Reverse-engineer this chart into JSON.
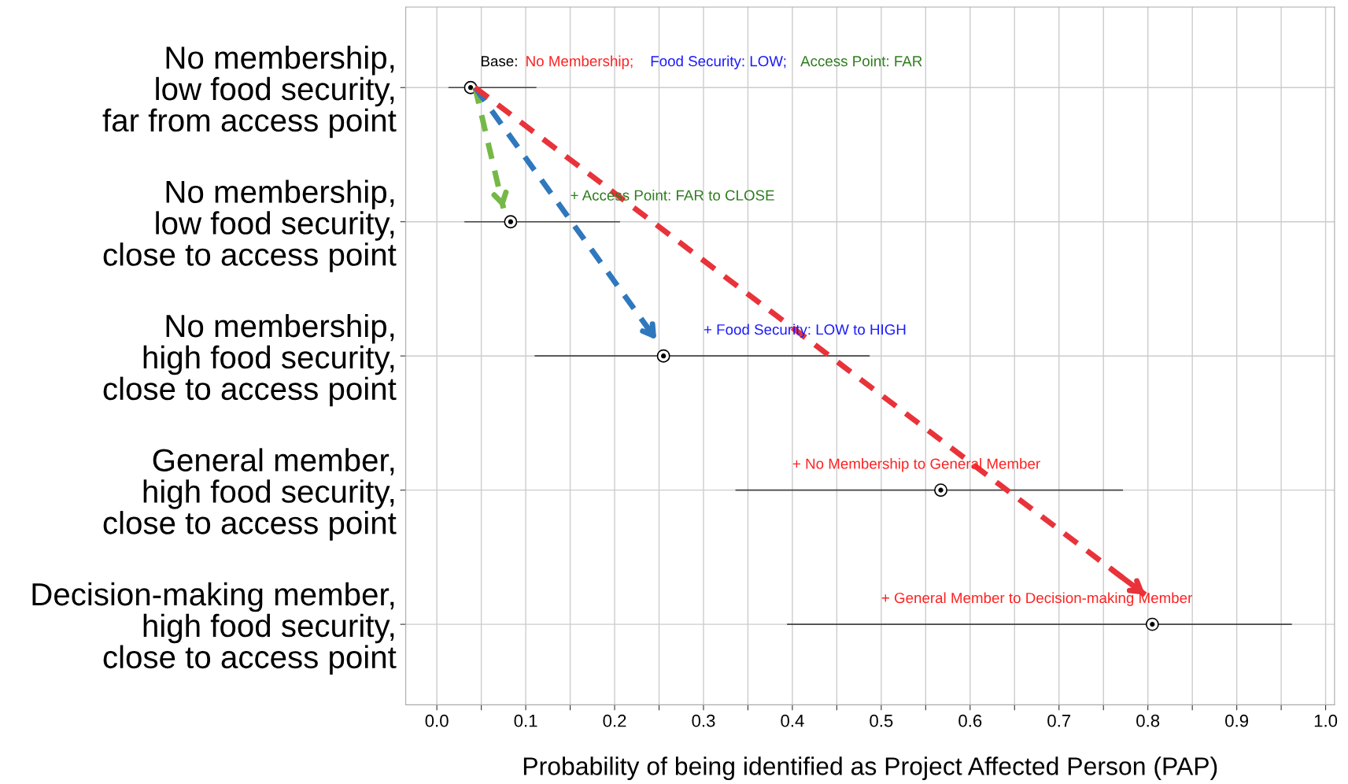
{
  "chart_data": {
    "type": "scatter",
    "categories": [
      "No membership,\nlow food security,\nfar from access point",
      "No membership,\nlow food security,\nclose to access point",
      "No membership,\nhigh food security,\nclose to access point",
      "General member,\nhigh food security,\nclose to access point",
      "Decision-making member,\nhigh food security,\nclose to access point"
    ],
    "orientation": "horizontal",
    "values": [
      0.038,
      0.083,
      0.255,
      0.567,
      0.805
    ],
    "errors": [
      [
        0.013,
        0.112
      ],
      [
        0.031,
        0.206
      ],
      [
        0.11,
        0.487
      ],
      [
        0.336,
        0.772
      ],
      [
        0.394,
        0.962
      ]
    ],
    "color": "#000000",
    "marker": "circle",
    "xlabel": "Probability of being identified as Project Affected Person (PAP)",
    "xlim": [
      -0.035,
      1.01
    ],
    "xticks": [
      {
        "value": 0,
        "label": "0.0"
      },
      {
        "value": 0.05,
        "label": null
      },
      0.1,
      {
        "value": 0.15,
        "label": null
      },
      0.2,
      {
        "value": 0.25,
        "label": null
      },
      0.3,
      {
        "value": 0.35,
        "label": null
      },
      0.4,
      {
        "value": 0.45,
        "label": null
      },
      0.5,
      {
        "value": 0.55,
        "label": null
      },
      0.6,
      {
        "value": 0.65,
        "label": null
      },
      0.7,
      {
        "value": 0.75,
        "label": null
      },
      0.8,
      {
        "value": 0.85,
        "label": null
      },
      0.9,
      {
        "value": 0.95,
        "label": null
      },
      {
        "value": 1,
        "label": "1.0"
      }
    ],
    "grid": true,
    "annotations": [
      "Base:",
      "No Membership;",
      "Food Security: LOW;",
      "Access Point: FAR",
      "+ Access Point: FAR to CLOSE",
      "+ Food Security: LOW to HIGH",
      "+ No Membership to General Member",
      "+ General Member to Decision-making Member"
    ]
  }
}
